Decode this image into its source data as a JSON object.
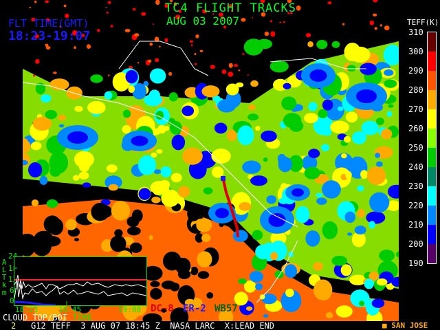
{
  "header": {
    "title": "TC4 FLIGHT TRACKS",
    "date": "AUG 03 2007",
    "flight_time_label": "FLT TIME(GMT)",
    "flight_time_range": "18:23-19:07"
  },
  "colorbar": {
    "title": "TEFF(K)",
    "labels": [
      "310",
      "300",
      "290",
      "280",
      "270",
      "260",
      "250",
      "240",
      "230",
      "220",
      "210",
      "200",
      "190"
    ],
    "colors": [
      "#660000",
      "#ff0000",
      "#ff5500",
      "#ffaa00",
      "#ffff00",
      "#88ff00",
      "#00cc00",
      "#008866",
      "#00ffff",
      "#0088ff",
      "#0000ff",
      "#550066"
    ]
  },
  "inset": {
    "axis_label": [
      "A",
      "L",
      "T",
      "k",
      "m"
    ],
    "y_ticks": [
      "24",
      "18",
      "12",
      "6",
      "0"
    ],
    "x_ticks": [
      "18:23",
      "18:45",
      "19:08"
    ],
    "caption_a": "CLOUD TOP/BOT",
    "caption_b": "TIME",
    "reference_altitude_km": 12,
    "reference_color": "#ff2222"
  },
  "aircraft": [
    {
      "name": "DC-8",
      "color": "#dd0000"
    },
    {
      "name": "ER-2",
      "color": "#1a1aff"
    },
    {
      "name": "WB57",
      "color": "#006600"
    }
  ],
  "footer": {
    "frame": "2",
    "info": "G12 TEFF  3 AUG 07 18:45 Z  NASA LARC  X:LEAD END",
    "location_marker": "■",
    "location": "SAN JOSE"
  }
}
